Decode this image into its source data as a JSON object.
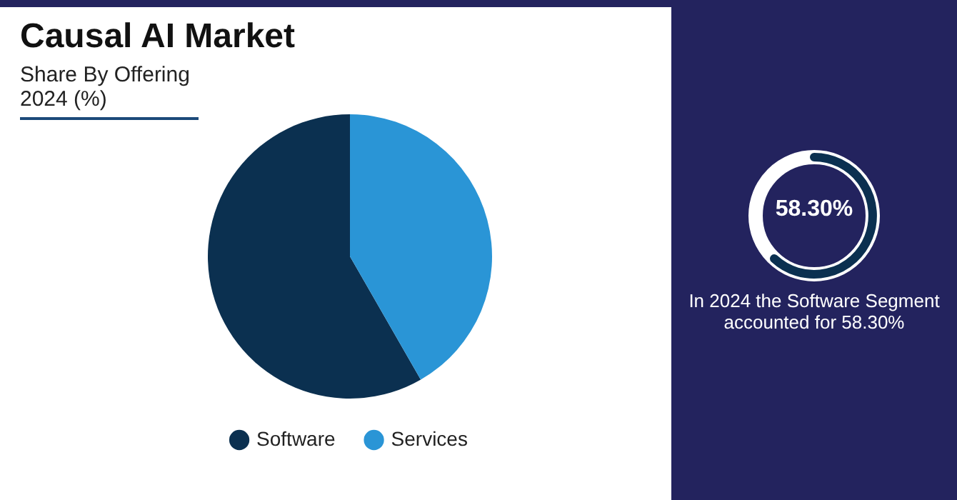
{
  "chart_data": {
    "type": "pie",
    "title": "Causal AI Market",
    "subtitle": "Share By Offering 2024 (%)",
    "categories": [
      "Software",
      "Services"
    ],
    "values": [
      58.3,
      41.7
    ],
    "colors": [
      "#0b3050",
      "#2a95d6"
    ],
    "legend": "bottom",
    "annotations": [
      "58.30%",
      "In 2024 the Software Segment accounted for 58.30%"
    ]
  }
}
